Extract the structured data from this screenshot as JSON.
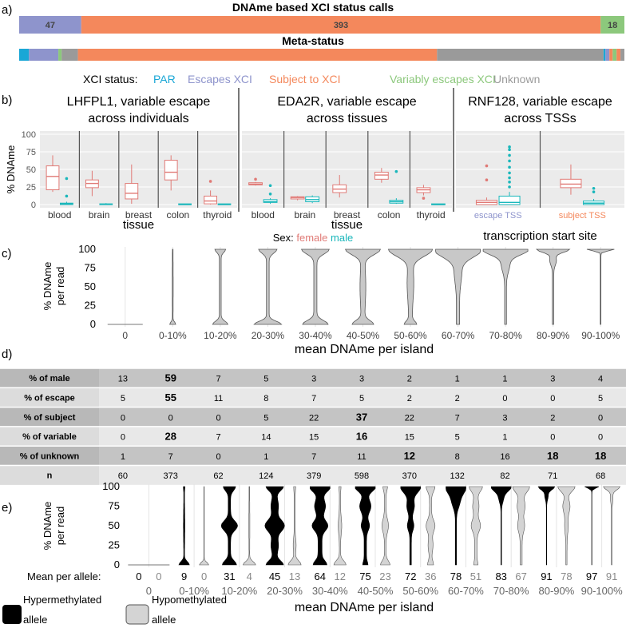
{
  "panel_labels": {
    "a": "a)",
    "b": "b)",
    "c": "c)",
    "d": "d)",
    "e": "e)"
  },
  "colors": {
    "par": "#1aa7d6",
    "escape": "#8e94cc",
    "subject": "#f4885c",
    "variable": "#8cc87c",
    "unknown": "#9a9a9a",
    "female": "#e07a76",
    "male": "#1ab7bb",
    "grey_violin": "#c8c8c8",
    "panel_bg": "#ebebeb",
    "table_dark": "#c4c4c4",
    "table_light": "#e8e8e8"
  },
  "chart_data": [
    {
      "id": "a-status",
      "type": "bar",
      "title": "DNAme based XCI status calls",
      "segments": [
        {
          "label": "47",
          "value": 47,
          "status": "escape"
        },
        {
          "label": "393",
          "value": 393,
          "status": "subject"
        },
        {
          "label": "18",
          "value": 18,
          "status": "variable"
        }
      ]
    },
    {
      "id": "a-meta",
      "type": "bar",
      "title": "Meta-status",
      "segments": [
        {
          "value": 3,
          "status": "par"
        },
        {
          "value": 9,
          "status": "escape"
        },
        {
          "value": 1,
          "status": "variable"
        },
        {
          "value": 5,
          "status": "unknown"
        },
        {
          "value": 110,
          "status": "subject"
        },
        {
          "value": 51,
          "status": "unknown"
        },
        {
          "value": 0.6,
          "status": "par"
        },
        {
          "value": 1.2,
          "status": "escape"
        },
        {
          "value": 1,
          "status": "subject"
        },
        {
          "value": 1.2,
          "status": "variable"
        },
        {
          "value": 1.2,
          "status": "subject"
        },
        {
          "value": 1.2,
          "status": "unknown"
        }
      ]
    },
    {
      "id": "b-boxplots",
      "type": "box",
      "ylabel": "% DNAme",
      "ylim": [
        0,
        100
      ],
      "yticks": [
        "0",
        "25",
        "50",
        "75",
        "100"
      ],
      "facets": [
        {
          "title_line1": "LHFPL1, variable escape",
          "title_line2": "across individuals",
          "xlabel": "tissue",
          "groups": [
            {
              "label": "blood",
              "female": {
                "q1": 21,
                "med": 40,
                "q3": 55,
                "min": 18,
                "max": 70
              },
              "male": {
                "q1": 0,
                "med": 1,
                "q3": 2,
                "min": 0,
                "max": 4,
                "out": [
                  12,
                  37
                ]
              }
            },
            {
              "label": "brain",
              "female": {
                "q1": 24,
                "med": 30,
                "q3": 35,
                "min": 12,
                "max": 48
              },
              "male": {
                "q1": 0,
                "med": 0.5,
                "q3": 1,
                "min": 0,
                "max": 2
              }
            },
            {
              "label": "breast",
              "female": {
                "q1": 8,
                "med": 16,
                "q3": 30,
                "min": 1,
                "max": 57
              },
              "male": null
            },
            {
              "label": "colon",
              "female": {
                "q1": 35,
                "med": 46,
                "q3": 63,
                "min": 20,
                "max": 70
              },
              "male": {
                "q1": 0,
                "med": 0,
                "q3": 1,
                "min": 0,
                "max": 1
              }
            },
            {
              "label": "thyroid",
              "female": {
                "q1": 1,
                "med": 5,
                "q3": 12,
                "min": 0,
                "max": 20,
                "out": [
                  33
                ]
              },
              "male": {
                "q1": 0,
                "med": 0,
                "q3": 1,
                "min": 0,
                "max": 1
              }
            }
          ]
        },
        {
          "title_line1": "EDA2R, variable escape",
          "title_line2": "across tissues",
          "xlabel": "tissue",
          "groups": [
            {
              "label": "blood",
              "female": {
                "q1": 28,
                "med": 29,
                "q3": 31,
                "min": 27,
                "max": 32,
                "out": [
                  36
                ]
              },
              "male": {
                "q1": 3,
                "med": 4,
                "q3": 7,
                "min": 1,
                "max": 9,
                "out": [
                  15,
                  27
                ]
              }
            },
            {
              "label": "brain",
              "female": {
                "q1": 8,
                "med": 10,
                "q3": 11,
                "min": 6,
                "max": 12
              },
              "male": {
                "q1": 4,
                "med": 7,
                "q3": 11,
                "min": 2,
                "max": 13
              }
            },
            {
              "label": "breast",
              "female": {
                "q1": 17,
                "med": 22,
                "q3": 28,
                "min": 10,
                "max": 42
              },
              "male": null
            },
            {
              "label": "colon",
              "female": {
                "q1": 36,
                "med": 42,
                "q3": 46,
                "min": 31,
                "max": 52
              },
              "male": {
                "q1": 2,
                "med": 4,
                "q3": 6,
                "min": 1,
                "max": 9,
                "out": [
                  47
                ]
              }
            },
            {
              "label": "thyroid",
              "female": {
                "q1": 17,
                "med": 21,
                "q3": 24,
                "min": 13,
                "max": 28,
                "out": [
                  9
                ]
              },
              "male": {
                "q1": 0,
                "med": 0,
                "q3": 1,
                "min": 0,
                "max": 1
              }
            }
          ]
        },
        {
          "title_line1": "RNF128, variable escape",
          "title_line2": "across TSSs",
          "xlabel": "transcription start site",
          "groups": [
            {
              "label": "escape TSS",
              "label_color": "escape",
              "female": {
                "q1": 0,
                "med": 3,
                "q3": 6,
                "min": 0,
                "max": 10,
                "out": [
                  35,
                  55
                ]
              },
              "male": {
                "q1": 0,
                "med": 3,
                "q3": 12,
                "min": 0,
                "max": 18,
                "out": [
                  25,
                  32,
                  38,
                  45,
                  53,
                  62,
                  70,
                  78,
                  82
                ]
              }
            },
            {
              "label": "subject TSS",
              "label_color": "subject",
              "female": {
                "q1": 24,
                "med": 29,
                "q3": 36,
                "min": 14,
                "max": 57
              },
              "male": {
                "q1": 0,
                "med": 2,
                "q3": 5,
                "min": 0,
                "max": 8,
                "out": [
                  18,
                  23
                ]
              }
            }
          ]
        }
      ]
    },
    {
      "id": "c-violins",
      "type": "violin",
      "ylabel_line1": "% DNAme",
      "ylabel_line2": "per read",
      "xlabel": "mean DNAme per island",
      "yticks": [
        "0",
        "25",
        "50",
        "75",
        "100"
      ],
      "categories": [
        "0",
        "0-10%",
        "10-20%",
        "20-30%",
        "30-40%",
        "40-50%",
        "50-60%",
        "60-70%",
        "70-80%",
        "80-90%",
        "90-100%"
      ]
    },
    {
      "id": "e-allele-violins",
      "type": "violin",
      "ylabel_line1": "% DNAme",
      "ylabel_line2": "per read",
      "xlabel": "mean DNAme per island",
      "yticks": [
        "0",
        "25",
        "50",
        "75",
        "100"
      ],
      "categories": [
        "0",
        "0-10%",
        "10-20%",
        "20-30%",
        "30-40%",
        "40-50%",
        "50-60%",
        "60-70%",
        "70-80%",
        "80-90%",
        "90-100%"
      ],
      "mean_label": "Mean per allele:",
      "hyper_means": [
        "0",
        "9",
        "31",
        "45",
        "64",
        "75",
        "72",
        "78",
        "83",
        "91",
        "97"
      ],
      "hypo_means": [
        "0",
        "0",
        "4",
        "13",
        "12",
        "23",
        "36",
        "51",
        "67",
        "78",
        "91"
      ]
    }
  ],
  "legend_b": {
    "prefix": "XCI status:",
    "items": [
      {
        "label": "PAR",
        "status": "par"
      },
      {
        "label": "Escapes XCI",
        "status": "escape"
      },
      {
        "label": "Subject to XCI",
        "status": "subject"
      },
      {
        "label": "Variably escapes XCI",
        "status": "variable"
      },
      {
        "label": "Unknown",
        "status": "unknown"
      }
    ]
  },
  "sex_legend": {
    "prefix": "Sex:",
    "female": "female",
    "male": "male"
  },
  "table_d": {
    "rows": [
      {
        "label": "% of male",
        "cells": [
          "13",
          "59",
          "7",
          "5",
          "3",
          "3",
          "2",
          "1",
          "1",
          "3",
          "4"
        ],
        "bold": [
          1
        ]
      },
      {
        "label": "% of escape",
        "cells": [
          "5",
          "55",
          "11",
          "8",
          "7",
          "5",
          "2",
          "2",
          "0",
          "0",
          "5"
        ],
        "bold": [
          1
        ]
      },
      {
        "label": "% of subject",
        "cells": [
          "0",
          "0",
          "0",
          "5",
          "22",
          "37",
          "22",
          "7",
          "3",
          "2",
          "0"
        ],
        "bold": [
          5
        ]
      },
      {
        "label": "% of variable",
        "cells": [
          "0",
          "28",
          "7",
          "14",
          "15",
          "16",
          "15",
          "5",
          "1",
          "0",
          "0"
        ],
        "bold": [
          1,
          5
        ]
      },
      {
        "label": "% of unknown",
        "cells": [
          "1",
          "7",
          "0",
          "1",
          "7",
          "11",
          "12",
          "8",
          "16",
          "18",
          "18"
        ],
        "bold": [
          6,
          9,
          10
        ]
      },
      {
        "label": "n",
        "cells": [
          "60",
          "373",
          "62",
          "124",
          "379",
          "598",
          "370",
          "132",
          "82",
          "71",
          "68"
        ],
        "bold": []
      }
    ]
  },
  "legend_e": {
    "hyper": "Hypermethylated\nallele",
    "hypo": "Hypomethylated\nallele"
  }
}
